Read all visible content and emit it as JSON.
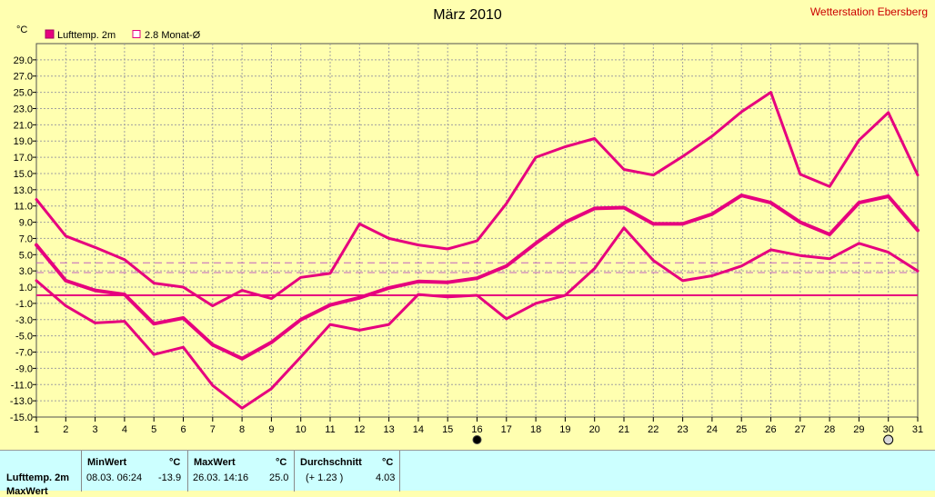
{
  "chart_data": {
    "type": "line",
    "title": "März 2010",
    "station": "Wetterstation Ebersberg",
    "y_unit": "°C",
    "ylim": [
      -15,
      31
    ],
    "yticks": [
      29,
      27,
      25,
      23,
      21,
      19,
      17,
      15,
      13,
      11,
      9,
      7,
      5,
      3,
      1,
      -1,
      -3,
      -5,
      -7,
      -9,
      -11,
      -13,
      -15
    ],
    "ytick_labels": [
      "29.0",
      "27.0",
      "25.0",
      "23.0",
      "21.0",
      "19.0",
      "17.0",
      "15.0",
      "13.0",
      "11.0",
      "9.0",
      "7.0",
      "5.0",
      "3.0",
      "1.0",
      "-1.0",
      "-3.0",
      "-5.0",
      "-7.0",
      "-9.0",
      "-11.0",
      "-13.0",
      "-15.0"
    ],
    "x": [
      1,
      2,
      3,
      4,
      5,
      6,
      7,
      8,
      9,
      10,
      11,
      12,
      13,
      14,
      15,
      16,
      17,
      18,
      19,
      20,
      21,
      22,
      23,
      24,
      25,
      26,
      27,
      28,
      29,
      30,
      31
    ],
    "xlim": [
      1,
      31
    ],
    "grid": true,
    "legend": [
      {
        "label": "Lufttemp. 2m",
        "filled": true
      },
      {
        "label": "2.8 Monat-Ø",
        "filled": false
      }
    ],
    "colors": {
      "series": "#e6007e",
      "dashed": "#c060c0",
      "grid": "#a0a0a0",
      "background": "#ffffb0",
      "title": "#000000",
      "station": "#cc0000"
    },
    "series": [
      {
        "name": "Lufttemp. 2m",
        "role": "max",
        "values": [
          11.8,
          7.3,
          5.9,
          4.4,
          1.5,
          1.0,
          -1.3,
          0.6,
          -0.4,
          2.2,
          2.7,
          8.8,
          7.0,
          6.2,
          5.7,
          6.7,
          11.3,
          17.0,
          18.3,
          19.3,
          15.5,
          14.8,
          17.1,
          19.6,
          22.6,
          25.0,
          14.9,
          13.4,
          19.1,
          22.5,
          14.8
        ]
      },
      {
        "name": "Lufttemp. 2m",
        "role": "mean",
        "values": [
          6.2,
          1.8,
          0.6,
          0.1,
          -3.5,
          -2.8,
          -6.1,
          -7.8,
          -5.8,
          -3.0,
          -1.2,
          -0.3,
          0.9,
          1.7,
          1.6,
          2.1,
          3.6,
          6.4,
          9.0,
          10.7,
          10.8,
          8.8,
          8.8,
          10.0,
          12.3,
          11.4,
          9.0,
          7.5,
          11.4,
          12.2,
          8.0
        ]
      },
      {
        "name": "Lufttemp. 2m",
        "role": "min",
        "values": [
          1.8,
          -1.3,
          -3.4,
          -3.2,
          -7.3,
          -6.4,
          -11.1,
          -13.9,
          -11.5,
          -7.6,
          -3.6,
          -4.3,
          -3.6,
          0.1,
          -0.2,
          0.0,
          -2.9,
          -1.0,
          0.0,
          3.3,
          8.3,
          4.3,
          1.8,
          2.4,
          3.6,
          5.6,
          4.9,
          4.5,
          6.4,
          5.3,
          3.0
        ]
      }
    ],
    "reference_lines": [
      {
        "value": 0.0,
        "style": "solid"
      },
      {
        "value": 4.0,
        "style": "dashed"
      },
      {
        "value": 2.8,
        "style": "dashed"
      }
    ],
    "markers": [
      {
        "x": 16,
        "symbol": "filled-circle"
      },
      {
        "x": 30,
        "symbol": "open-circle"
      }
    ]
  },
  "stats": {
    "row_label": "Lufttemp. 2m",
    "row2_label": "MaxWert",
    "min_header": "MinWert",
    "max_header": "MaxWert",
    "avg_header": "Durchschnitt",
    "unit_header": "°C",
    "min_time": "08.03.  06:24",
    "min_value": "-13.9",
    "max_time": "26.03.  14:16",
    "max_value": "25.0",
    "avg_diff": "(+ 1.23 )",
    "avg_value": "4.03"
  }
}
